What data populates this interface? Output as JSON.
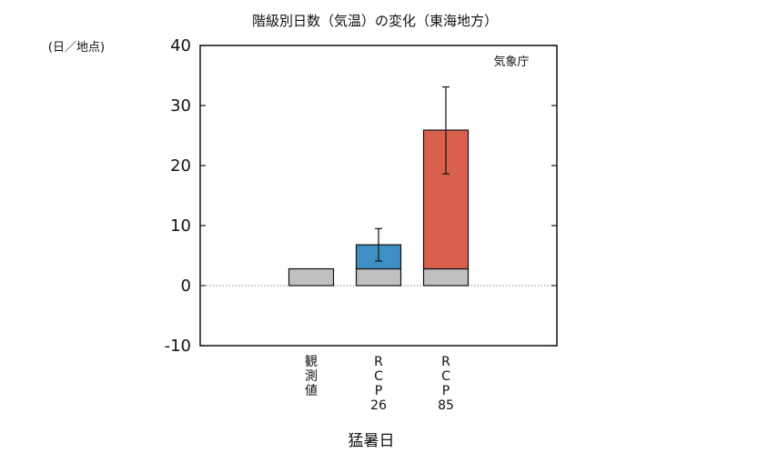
{
  "chart_data": {
    "type": "bar",
    "title": "階級別日数（気温）の変化（東海地方）",
    "unit_label": "(日／地点)",
    "credit": "気象庁",
    "xlabel": "猛暑日",
    "ylabel": "",
    "ylim": [
      -10,
      40
    ],
    "yticks": [
      -10,
      0,
      10,
      20,
      30,
      40
    ],
    "grid": false,
    "zero_line": true,
    "categories": [
      {
        "lines": [
          "観",
          "測",
          "値"
        ]
      },
      {
        "lines": [
          "R",
          "C",
          "P",
          "26"
        ]
      },
      {
        "lines": [
          "R",
          "C",
          "P",
          "85"
        ]
      }
    ],
    "series": [
      {
        "values": [
          2.8,
          2.8,
          2.8
        ],
        "color": "#c0c0c0"
      },
      {
        "values": [
          0,
          4.0,
          23.1
        ],
        "color": "#3d8fc4"
      }
    ],
    "totals": [
      2.8,
      6.8,
      25.9
    ],
    "error_bars": [
      null,
      {
        "low": 4.1,
        "high": 9.5
      },
      {
        "low": 18.6,
        "high": 33.1
      }
    ],
    "colors": {
      "bar_colors_by_category": [
        [
          "#c0c0c0"
        ],
        [
          "#c0c0c0",
          "#3d8fc4"
        ],
        [
          "#c0c0c0",
          "#d9604c"
        ]
      ],
      "outline": "#111111"
    }
  }
}
